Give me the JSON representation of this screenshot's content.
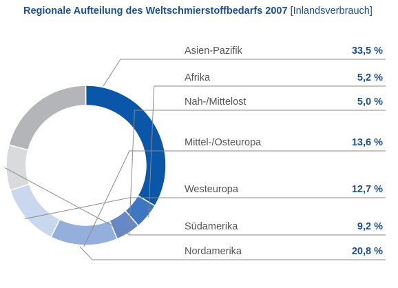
{
  "title": {
    "main": "Regionale Aufteilung des Weltschmierstoffbedarfs 2007",
    "sub": "[Inlandsverbrauch]"
  },
  "chart_data": {
    "type": "pie",
    "title": "Regionale Aufteilung des Weltschmierstoffbedarfs 2007 [Inlandsverbrauch]",
    "donut": true,
    "legend": "right",
    "categories": [
      "Asien-Pazifik",
      "Afrika",
      "Nah-/Mittelost",
      "Mittel-/Osteuropa",
      "Westeuropa",
      "Südamerika",
      "Nordamerika"
    ],
    "values": [
      33.5,
      5.2,
      5.0,
      13.6,
      12.7,
      9.2,
      20.8
    ],
    "value_labels": [
      "33,5 %",
      "5,2 %",
      "5,0 %",
      "13,6 %",
      "12,7 %",
      "9,2 %",
      "20,8 %"
    ],
    "colors": [
      "#0a56a8",
      "#3d77c1",
      "#6688c8",
      "#94afdb",
      "#c9d7ef",
      "#d9dadc",
      "#b3b5b9"
    ]
  }
}
